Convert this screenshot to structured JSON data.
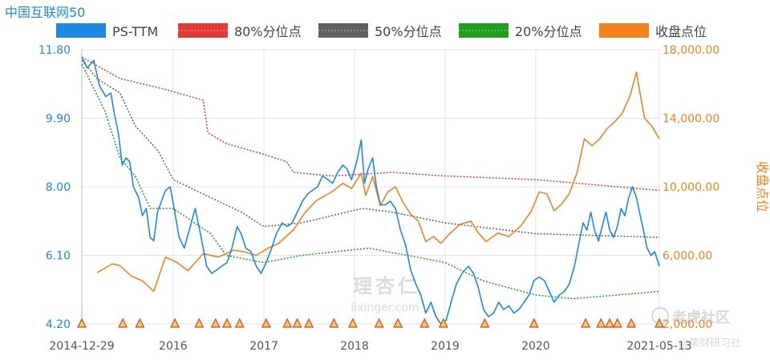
{
  "title": "中国互联网50",
  "watermark": {
    "brand_cn": "理杏仁",
    "brand_url": "lixinger.com"
  },
  "corner_logo": {
    "name": "老虎社区",
    "credit": "@荣财研习社"
  },
  "colors": {
    "ps": "#1e88e5",
    "p80": "#e53935",
    "p50": "#616161",
    "p20": "#1ea01e",
    "close": "#f5821f",
    "marker_fill": "#ffd54f",
    "marker_stroke": "#e53935"
  },
  "chart_data": {
    "type": "line",
    "title": "中国互联网50",
    "legend": [
      {
        "key": "ps",
        "label": "PS-TTM",
        "style": "solid"
      },
      {
        "key": "p80",
        "label": "80%分位点",
        "style": "dotted"
      },
      {
        "key": "p50",
        "label": "50%分位点",
        "style": "dotted"
      },
      {
        "key": "p20",
        "label": "20%分位点",
        "style": "dotted"
      },
      {
        "key": "close",
        "label": "收盘点位",
        "style": "solid"
      }
    ],
    "legend_position": "top",
    "x_range": [
      "2014-12-29",
      "2021-05-13"
    ],
    "x_ticks": [
      {
        "date": "2014-12-29",
        "label": "2014-12-29"
      },
      {
        "date": "2016-01-01",
        "label": "2016"
      },
      {
        "date": "2017-01-01",
        "label": "2017"
      },
      {
        "date": "2018-01-01",
        "label": "2018"
      },
      {
        "date": "2019-01-01",
        "label": "2019"
      },
      {
        "date": "2020-01-01",
        "label": "2020"
      },
      {
        "date": "2021-05-13",
        "label": "2021-05-13"
      }
    ],
    "y_left": {
      "label": "",
      "range": [
        4.2,
        11.8
      ],
      "ticks": [
        "4.20",
        "6.10",
        "8.00",
        "9.90",
        "11.80"
      ]
    },
    "y_right": {
      "label": "收盘点位",
      "range": [
        2000,
        18000
      ],
      "ticks": [
        "2,000.00",
        "6,000.00",
        "10,000.00",
        "14,000.00",
        "18,000.00"
      ]
    },
    "grid": true,
    "series": [
      {
        "key": "ps",
        "name": "PS-TTM",
        "axis": "left",
        "points": [
          [
            "2014-12-29",
            11.6
          ],
          [
            "2015-01-20",
            11.3
          ],
          [
            "2015-02-15",
            11.5
          ],
          [
            "2015-03-10",
            10.8
          ],
          [
            "2015-04-05",
            10.5
          ],
          [
            "2015-04-25",
            10.6
          ],
          [
            "2015-05-10",
            10.0
          ],
          [
            "2015-05-25",
            9.5
          ],
          [
            "2015-06-10",
            8.6
          ],
          [
            "2015-06-25",
            8.8
          ],
          [
            "2015-07-10",
            8.7
          ],
          [
            "2015-07-25",
            8.0
          ],
          [
            "2015-08-15",
            7.7
          ],
          [
            "2015-08-30",
            7.2
          ],
          [
            "2015-09-15",
            7.4
          ],
          [
            "2015-09-30",
            6.6
          ],
          [
            "2015-10-15",
            6.5
          ],
          [
            "2015-10-30",
            7.3
          ],
          [
            "2015-11-15",
            7.6
          ],
          [
            "2015-12-01",
            7.9
          ],
          [
            "2015-12-20",
            8.0
          ],
          [
            "2016-01-05",
            7.4
          ],
          [
            "2016-01-25",
            6.6
          ],
          [
            "2016-02-15",
            6.3
          ],
          [
            "2016-03-10",
            6.9
          ],
          [
            "2016-03-30",
            7.4
          ],
          [
            "2016-04-20",
            6.7
          ],
          [
            "2016-05-15",
            5.8
          ],
          [
            "2016-06-05",
            5.6
          ],
          [
            "2016-06-25",
            5.7
          ],
          [
            "2016-07-15",
            5.8
          ],
          [
            "2016-08-05",
            5.9
          ],
          [
            "2016-08-25",
            6.3
          ],
          [
            "2016-09-15",
            6.9
          ],
          [
            "2016-10-01",
            6.7
          ],
          [
            "2016-10-20",
            6.3
          ],
          [
            "2016-11-10",
            6.2
          ],
          [
            "2016-12-01",
            5.8
          ],
          [
            "2016-12-20",
            5.6
          ],
          [
            "2017-01-10",
            5.9
          ],
          [
            "2017-02-01",
            6.3
          ],
          [
            "2017-02-20",
            6.7
          ],
          [
            "2017-03-15",
            7.0
          ],
          [
            "2017-04-05",
            6.9
          ],
          [
            "2017-04-25",
            7.0
          ],
          [
            "2017-05-15",
            7.3
          ],
          [
            "2017-06-05",
            7.6
          ],
          [
            "2017-06-25",
            7.8
          ],
          [
            "2017-07-15",
            7.9
          ],
          [
            "2017-08-05",
            8.0
          ],
          [
            "2017-08-25",
            8.3
          ],
          [
            "2017-09-15",
            8.2
          ],
          [
            "2017-10-05",
            8.1
          ],
          [
            "2017-10-25",
            8.4
          ],
          [
            "2017-11-15",
            8.6
          ],
          [
            "2017-12-01",
            8.5
          ],
          [
            "2017-12-20",
            8.2
          ],
          [
            "2018-01-10",
            8.7
          ],
          [
            "2018-01-28",
            9.3
          ],
          [
            "2018-02-10",
            8.1
          ],
          [
            "2018-02-25",
            8.5
          ],
          [
            "2018-03-15",
            8.8
          ],
          [
            "2018-03-30",
            8.0
          ],
          [
            "2018-04-15",
            7.5
          ],
          [
            "2018-05-05",
            7.5
          ],
          [
            "2018-05-25",
            7.6
          ],
          [
            "2018-06-15",
            7.4
          ],
          [
            "2018-07-05",
            6.8
          ],
          [
            "2018-07-25",
            6.4
          ],
          [
            "2018-08-15",
            5.7
          ],
          [
            "2018-09-05",
            5.3
          ],
          [
            "2018-09-25",
            5.0
          ],
          [
            "2018-10-15",
            4.5
          ],
          [
            "2018-11-05",
            4.8
          ],
          [
            "2018-11-25",
            4.4
          ],
          [
            "2018-12-15",
            4.2
          ],
          [
            "2019-01-05",
            4.3
          ],
          [
            "2019-01-25",
            4.8
          ],
          [
            "2019-02-15",
            5.3
          ],
          [
            "2019-03-10",
            5.6
          ],
          [
            "2019-04-05",
            5.8
          ],
          [
            "2019-04-25",
            5.6
          ],
          [
            "2019-05-15",
            5.2
          ],
          [
            "2019-06-05",
            4.6
          ],
          [
            "2019-06-25",
            4.4
          ],
          [
            "2019-07-15",
            4.5
          ],
          [
            "2019-08-05",
            4.8
          ],
          [
            "2019-08-25",
            4.6
          ],
          [
            "2019-09-15",
            4.7
          ],
          [
            "2019-10-05",
            4.5
          ],
          [
            "2019-10-25",
            4.6
          ],
          [
            "2019-11-15",
            4.8
          ],
          [
            "2019-12-05",
            5.0
          ],
          [
            "2019-12-25",
            5.4
          ],
          [
            "2020-01-15",
            5.5
          ],
          [
            "2020-02-05",
            5.4
          ],
          [
            "2020-02-25",
            5.1
          ],
          [
            "2020-03-15",
            4.8
          ],
          [
            "2020-04-05",
            5.0
          ],
          [
            "2020-04-25",
            5.1
          ],
          [
            "2020-05-15",
            5.3
          ],
          [
            "2020-06-05",
            5.8
          ],
          [
            "2020-06-25",
            6.5
          ],
          [
            "2020-07-10",
            7.0
          ],
          [
            "2020-07-25",
            6.8
          ],
          [
            "2020-08-10",
            7.3
          ],
          [
            "2020-08-25",
            6.8
          ],
          [
            "2020-09-10",
            6.5
          ],
          [
            "2020-09-25",
            6.9
          ],
          [
            "2020-10-10",
            7.3
          ],
          [
            "2020-10-25",
            6.8
          ],
          [
            "2020-11-10",
            6.6
          ],
          [
            "2020-11-25",
            6.9
          ],
          [
            "2020-12-10",
            7.4
          ],
          [
            "2020-12-25",
            7.2
          ],
          [
            "2021-01-10",
            7.7
          ],
          [
            "2021-01-25",
            8.0
          ],
          [
            "2021-02-10",
            7.7
          ],
          [
            "2021-02-25",
            7.2
          ],
          [
            "2021-03-10",
            6.8
          ],
          [
            "2021-03-25",
            6.3
          ],
          [
            "2021-04-10",
            6.1
          ],
          [
            "2021-04-25",
            6.2
          ],
          [
            "2021-05-13",
            5.8
          ]
        ]
      },
      {
        "key": "p80",
        "name": "80%分位点",
        "axis": "left",
        "points": [
          [
            "2014-12-29",
            11.6
          ],
          [
            "2015-06-01",
            11.0
          ],
          [
            "2015-12-01",
            10.7
          ],
          [
            "2016-05-01",
            10.4
          ],
          [
            "2016-05-20",
            9.5
          ],
          [
            "2016-08-01",
            9.2
          ],
          [
            "2017-01-01",
            8.9
          ],
          [
            "2017-04-01",
            8.7
          ],
          [
            "2017-05-01",
            8.4
          ],
          [
            "2017-10-01",
            8.3
          ],
          [
            "2018-06-01",
            8.4
          ],
          [
            "2019-01-01",
            8.3
          ],
          [
            "2020-01-01",
            8.2
          ],
          [
            "2021-05-13",
            7.9
          ]
        ]
      },
      {
        "key": "p50",
        "name": "50%分位点",
        "axis": "left",
        "points": [
          [
            "2014-12-29",
            11.5
          ],
          [
            "2015-03-01",
            11.0
          ],
          [
            "2015-06-01",
            10.6
          ],
          [
            "2015-08-01",
            9.7
          ],
          [
            "2015-11-01",
            9.0
          ],
          [
            "2016-01-01",
            8.2
          ],
          [
            "2016-04-01",
            7.9
          ],
          [
            "2016-10-01",
            7.3
          ],
          [
            "2017-01-01",
            6.9
          ],
          [
            "2017-06-01",
            7.0
          ],
          [
            "2018-02-01",
            7.4
          ],
          [
            "2018-06-01",
            7.3
          ],
          [
            "2019-01-01",
            7.0
          ],
          [
            "2020-01-01",
            6.7
          ],
          [
            "2021-05-13",
            6.6
          ]
        ]
      },
      {
        "key": "p20",
        "name": "20%分位点",
        "axis": "left",
        "points": [
          [
            "2014-12-29",
            11.4
          ],
          [
            "2015-04-01",
            10.1
          ],
          [
            "2015-06-01",
            8.8
          ],
          [
            "2015-08-01",
            8.3
          ],
          [
            "2015-10-01",
            7.4
          ],
          [
            "2016-01-01",
            7.4
          ],
          [
            "2016-06-01",
            6.7
          ],
          [
            "2016-08-01",
            6.1
          ],
          [
            "2017-01-01",
            5.9
          ],
          [
            "2017-06-01",
            6.1
          ],
          [
            "2018-03-01",
            6.3
          ],
          [
            "2019-01-01",
            5.9
          ],
          [
            "2019-06-01",
            5.4
          ],
          [
            "2020-01-01",
            5.0
          ],
          [
            "2020-06-01",
            4.9
          ],
          [
            "2021-05-13",
            5.1
          ]
        ]
      },
      {
        "key": "close",
        "name": "收盘点位",
        "axis": "right",
        "points": [
          [
            "2015-03-01",
            5000
          ],
          [
            "2015-05-01",
            5500
          ],
          [
            "2015-06-01",
            5400
          ],
          [
            "2015-07-15",
            4800
          ],
          [
            "2015-09-01",
            4500
          ],
          [
            "2015-10-15",
            3900
          ],
          [
            "2015-12-01",
            5900
          ],
          [
            "2016-01-15",
            5600
          ],
          [
            "2016-03-01",
            5100
          ],
          [
            "2016-05-01",
            6100
          ],
          [
            "2016-07-01",
            5900
          ],
          [
            "2016-09-01",
            6300
          ],
          [
            "2016-10-15",
            6200
          ],
          [
            "2016-12-01",
            6000
          ],
          [
            "2017-01-15",
            6400
          ],
          [
            "2017-03-01",
            6700
          ],
          [
            "2017-05-01",
            7500
          ],
          [
            "2017-06-15",
            8500
          ],
          [
            "2017-08-01",
            9200
          ],
          [
            "2017-10-01",
            9700
          ],
          [
            "2017-11-15",
            10200
          ],
          [
            "2017-12-20",
            9900
          ],
          [
            "2018-01-28",
            10800
          ],
          [
            "2018-02-15",
            9500
          ],
          [
            "2018-03-15",
            10600
          ],
          [
            "2018-04-15",
            8900
          ],
          [
            "2018-05-15",
            9700
          ],
          [
            "2018-06-15",
            10000
          ],
          [
            "2018-07-15",
            9100
          ],
          [
            "2018-08-15",
            8400
          ],
          [
            "2018-09-15",
            8000
          ],
          [
            "2018-10-15",
            6800
          ],
          [
            "2018-11-15",
            7100
          ],
          [
            "2018-12-15",
            6700
          ],
          [
            "2019-01-15",
            7200
          ],
          [
            "2019-03-01",
            7800
          ],
          [
            "2019-04-15",
            8000
          ],
          [
            "2019-05-15",
            7300
          ],
          [
            "2019-06-15",
            6800
          ],
          [
            "2019-08-01",
            7300
          ],
          [
            "2019-09-15",
            7100
          ],
          [
            "2019-11-01",
            7700
          ],
          [
            "2019-12-15",
            8600
          ],
          [
            "2020-01-15",
            9700
          ],
          [
            "2020-02-15",
            9600
          ],
          [
            "2020-03-15",
            8600
          ],
          [
            "2020-04-15",
            9000
          ],
          [
            "2020-05-15",
            9600
          ],
          [
            "2020-06-15",
            10800
          ],
          [
            "2020-07-15",
            12800
          ],
          [
            "2020-08-15",
            12400
          ],
          [
            "2020-09-15",
            12800
          ],
          [
            "2020-10-15",
            13400
          ],
          [
            "2020-11-15",
            13800
          ],
          [
            "2020-12-15",
            14300
          ],
          [
            "2021-01-15",
            15300
          ],
          [
            "2021-02-10",
            16700
          ],
          [
            "2021-02-25",
            15400
          ],
          [
            "2021-03-15",
            14000
          ],
          [
            "2021-04-15",
            13500
          ],
          [
            "2021-05-13",
            12800
          ]
        ]
      }
    ],
    "event_markers": [
      "2014-12-29",
      "2015-06-12",
      "2015-08-20",
      "2016-01-08",
      "2016-04-15",
      "2016-06-20",
      "2016-08-05",
      "2016-09-25",
      "2017-01-10",
      "2017-04-05",
      "2017-05-15",
      "2017-07-01",
      "2017-10-10",
      "2017-12-25",
      "2018-04-10",
      "2018-06-25",
      "2018-10-10",
      "2018-12-25",
      "2019-06-10",
      "2019-12-25",
      "2020-07-20",
      "2020-09-20",
      "2020-10-25",
      "2020-11-25",
      "2021-01-20",
      "2021-05-13"
    ]
  }
}
